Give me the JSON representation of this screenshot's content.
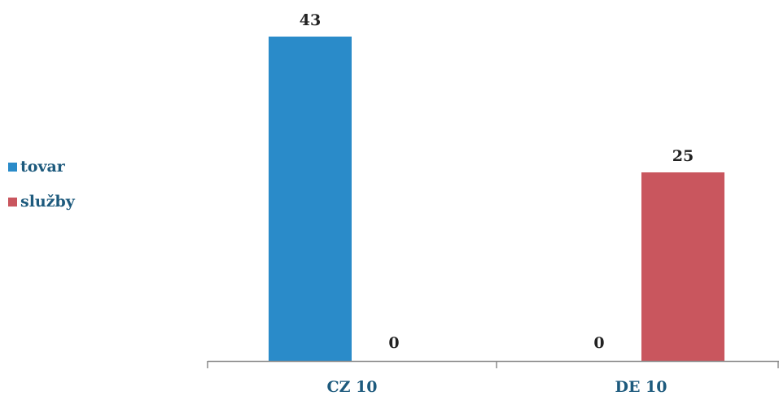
{
  "chart_data": {
    "type": "bar",
    "categories": [
      "CZ 10",
      "DE 10"
    ],
    "series": [
      {
        "name": "tovar",
        "values": [
          43,
          0
        ],
        "color": "#2a8bc9"
      },
      {
        "name": "služby",
        "values": [
          0,
          25
        ],
        "color": "#c9565e"
      }
    ],
    "title": "",
    "xlabel": "",
    "ylabel": "",
    "ylim": [
      0,
      43
    ],
    "grid": false,
    "legend_position": "left",
    "data_labels": true,
    "axis_color": "#8a8a8a",
    "category_label_color": "#1d5a7d",
    "data_label_color": "#222222"
  }
}
